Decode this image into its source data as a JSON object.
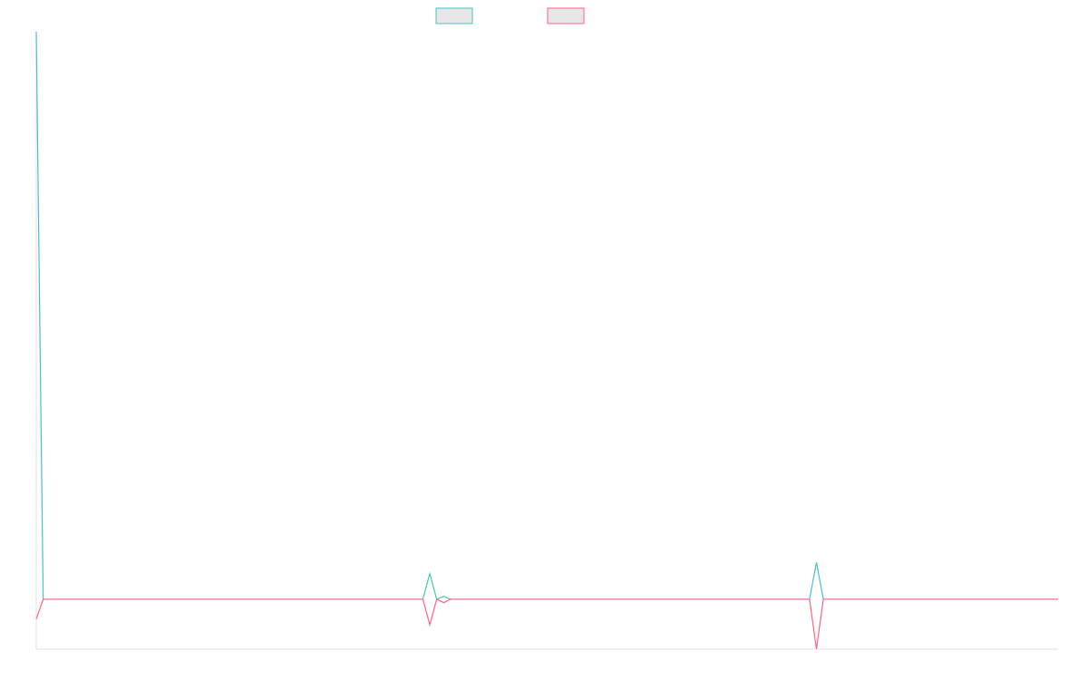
{
  "chart_data": {
    "type": "line",
    "x": [
      0,
      1,
      56,
      57,
      58,
      59,
      60,
      112,
      113,
      114,
      148
    ],
    "xlim": [
      0,
      148
    ],
    "ylim": [
      -8.8,
      100
    ],
    "series": [
      {
        "color": "#4bc0c0",
        "values": [
          100,
          0,
          0,
          4.5,
          0,
          0.5,
          0,
          0,
          6.5,
          0,
          0
        ]
      },
      {
        "color": "#ff6384",
        "values": [
          -3.5,
          0,
          0,
          -4.5,
          0,
          -0.6,
          0,
          0,
          -8.8,
          0,
          0
        ]
      }
    ]
  }
}
